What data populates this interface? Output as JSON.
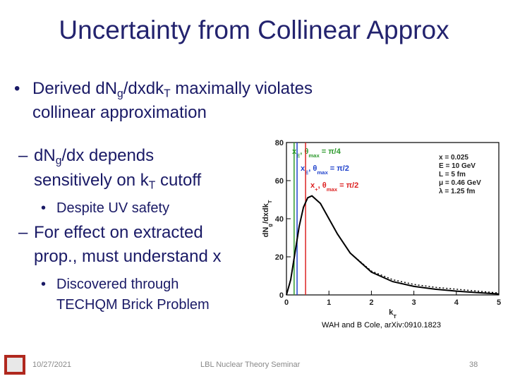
{
  "title": "Uncertainty from Collinear Approx",
  "bullets": [
    {
      "level": 1,
      "marker": "•",
      "lines": [
        [
          {
            "t": "Derived dN"
          },
          {
            "t": "g",
            "s": "sub"
          },
          {
            "t": "/dxdk"
          },
          {
            "t": "T",
            "s": "sub"
          },
          {
            "t": " maximally violates"
          }
        ],
        [
          {
            "t": "collinear approximation"
          }
        ]
      ]
    },
    {
      "level": 2,
      "marker": "–",
      "lines": [
        [
          {
            "t": "dN"
          },
          {
            "t": "g",
            "s": "sub"
          },
          {
            "t": "/dx depends"
          }
        ],
        [
          {
            "t": "sensitively on k"
          },
          {
            "t": "T",
            "s": "sub"
          },
          {
            "t": " cutoff"
          }
        ]
      ]
    },
    {
      "level": 3,
      "marker": "•",
      "lines": [
        [
          {
            "t": "Despite UV safety"
          }
        ]
      ]
    },
    {
      "level": 2,
      "marker": "–",
      "lines": [
        [
          {
            "t": "For effect on extracted"
          }
        ],
        [
          {
            "t": "prop., must understand x"
          }
        ]
      ]
    },
    {
      "level": 3,
      "marker": "•",
      "lines": [
        [
          {
            "t": "Discovered through"
          }
        ],
        [
          {
            "t": "TECHQM Brick Problem"
          }
        ]
      ]
    }
  ],
  "chart_data": {
    "type": "line",
    "x": [
      0,
      0.1,
      0.2,
      0.3,
      0.4,
      0.5,
      0.6,
      0.8,
      1.0,
      1.2,
      1.5,
      2.0,
      2.5,
      3.0,
      3.5,
      4.0,
      4.5,
      5.0
    ],
    "series": [
      {
        "color": "#000000",
        "dash": "solid",
        "values": [
          0,
          8,
          22,
          36,
          46,
          51,
          52,
          48,
          40,
          32,
          22,
          12,
          7,
          4.5,
          3,
          2,
          1.2,
          0.5
        ]
      },
      {
        "color": "#000000",
        "dash": "dotted",
        "values": [
          0,
          8,
          22,
          36,
          46,
          51,
          52,
          48,
          40,
          32,
          22,
          12.5,
          8,
          5.5,
          4,
          3,
          2,
          1
        ]
      }
    ],
    "xlabel": [
      {
        "t": "k"
      },
      {
        "t": "T",
        "s": "sub"
      }
    ],
    "ylabel": [
      {
        "t": "dN"
      },
      {
        "t": "g",
        "s": "sub"
      },
      {
        "t": "/dxdk"
      },
      {
        "t": "T",
        "s": "sub"
      }
    ],
    "xlim": [
      0,
      5
    ],
    "ylim": [
      0,
      80
    ],
    "xticks": [
      0,
      1,
      2,
      3,
      4,
      5
    ],
    "yticks": [
      0,
      20,
      40,
      60,
      80
    ],
    "cutoffs": [
      {
        "x": 0.18,
        "color": "#2e9a2e",
        "label": [
          {
            "t": "x"
          },
          {
            "t": "E",
            "s": "sub"
          },
          {
            "t": ", θ"
          },
          {
            "t": "max",
            "s": "sub"
          },
          {
            "t": " = π/4"
          }
        ]
      },
      {
        "x": 0.25,
        "color": "#2244cc",
        "label": [
          {
            "t": "x"
          },
          {
            "t": "E",
            "s": "sub"
          },
          {
            "t": ", θ"
          },
          {
            "t": "max",
            "s": "sub"
          },
          {
            "t": " = π/2"
          }
        ]
      },
      {
        "x": 0.45,
        "color": "#dd2222",
        "label": [
          {
            "t": "x"
          },
          {
            "t": "+",
            "s": "sub"
          },
          {
            "t": ", θ"
          },
          {
            "t": "max",
            "s": "sub"
          },
          {
            "t": " = π/2"
          }
        ]
      }
    ],
    "parameters": [
      "x = 0.025",
      "E = 10 GeV",
      "L = 5 fm",
      "μ = 0.46 GeV",
      "λ = 1.25 fm"
    ]
  },
  "caption": "WAH and B Cole, arXiv:0910.1823",
  "footer": {
    "date": "10/27/2021",
    "event": "LBL Nuclear Theory Seminar",
    "page": "38"
  }
}
